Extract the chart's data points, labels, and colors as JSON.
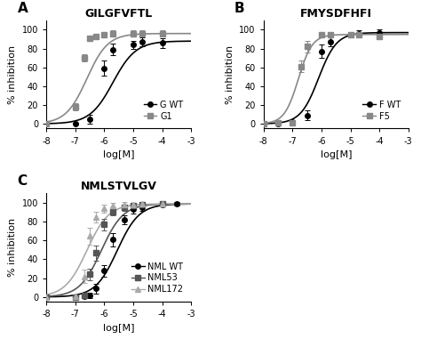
{
  "panel_A": {
    "title": "GILGFVFTL",
    "label": "A",
    "series": [
      {
        "name": "G WT",
        "color": "#000000",
        "marker": "o",
        "markersize": 4,
        "linewidth": 1.2,
        "x": [
          -8,
          -7,
          -6.5,
          -6,
          -5.7,
          -5,
          -4.7,
          -4
        ],
        "y": [
          0,
          0,
          5,
          59,
          79,
          84,
          87,
          86
        ],
        "yerr": [
          1,
          1,
          5,
          8,
          6,
          4,
          5,
          5
        ],
        "ic50": -5.7,
        "top": 88,
        "slope": 1.1
      },
      {
        "name": "G1",
        "color": "#888888",
        "marker": "s",
        "markersize": 4,
        "linewidth": 1.2,
        "x": [
          -8,
          -7,
          -6.7,
          -6.5,
          -6.3,
          -6,
          -5.7,
          -5,
          -4.7,
          -4
        ],
        "y": [
          0,
          18,
          70,
          91,
          93,
          95,
          96,
          96,
          96,
          96
        ],
        "yerr": [
          1,
          4,
          4,
          3,
          3,
          3,
          3,
          3,
          3,
          3
        ],
        "ic50": -6.6,
        "top": 96,
        "slope": 1.2
      }
    ],
    "xlim": [
      -8,
      -3
    ],
    "ylim": [
      -5,
      110
    ],
    "xticks": [
      -8,
      -7,
      -6,
      -5,
      -4,
      -3
    ],
    "yticks": [
      0,
      20,
      40,
      60,
      80,
      100
    ]
  },
  "panel_B": {
    "title": "FMYSDFHFI",
    "label": "B",
    "series": [
      {
        "name": "F WT",
        "color": "#000000",
        "marker": "o",
        "markersize": 4,
        "linewidth": 1.2,
        "x": [
          -8,
          -7.5,
          -7,
          -6.5,
          -6,
          -5.7,
          -5,
          -4.7,
          -4
        ],
        "y": [
          0,
          0,
          2,
          9,
          77,
          87,
          95,
          96,
          97
        ],
        "yerr": [
          1,
          1,
          2,
          5,
          7,
          5,
          3,
          3,
          3
        ],
        "ic50": -6.1,
        "top": 97,
        "slope": 1.4
      },
      {
        "name": "F5",
        "color": "#888888",
        "marker": "s",
        "markersize": 4,
        "linewidth": 1.2,
        "x": [
          -8,
          -7.5,
          -7,
          -6.7,
          -6.5,
          -6,
          -5.7,
          -5,
          -4.7,
          -4
        ],
        "y": [
          0,
          1,
          1,
          61,
          82,
          95,
          95,
          95,
          95,
          93
        ],
        "yerr": [
          1,
          1,
          2,
          6,
          6,
          3,
          3,
          3,
          3,
          3
        ],
        "ic50": -6.8,
        "top": 95,
        "slope": 1.8
      }
    ],
    "xlim": [
      -8,
      -3
    ],
    "ylim": [
      -5,
      110
    ],
    "xticks": [
      -8,
      -7,
      -6,
      -5,
      -4,
      -3
    ],
    "yticks": [
      0,
      20,
      40,
      60,
      80,
      100
    ]
  },
  "panel_C": {
    "title": "NMLSTVLGV",
    "label": "C",
    "series": [
      {
        "name": "NML WT",
        "color": "#000000",
        "marker": "o",
        "markersize": 4,
        "linewidth": 1.2,
        "x": [
          -8,
          -7,
          -6.7,
          -6.5,
          -6.3,
          -6,
          -5.7,
          -5.3,
          -5,
          -4.7,
          -4,
          -3.5
        ],
        "y": [
          0,
          0,
          1,
          2,
          9,
          28,
          61,
          82,
          93,
          95,
          98,
          99
        ],
        "yerr": [
          1,
          1,
          2,
          3,
          5,
          6,
          7,
          5,
          4,
          3,
          2,
          2
        ],
        "ic50": -5.55,
        "top": 99,
        "slope": 1.15
      },
      {
        "name": "NML53",
        "color": "#555555",
        "marker": "s",
        "markersize": 4,
        "linewidth": 1.2,
        "x": [
          -8,
          -7,
          -6.7,
          -6.5,
          -6.3,
          -6,
          -5.7,
          -5.3,
          -5,
          -4.7,
          -4
        ],
        "y": [
          0,
          0,
          2,
          24,
          47,
          77,
          91,
          95,
          97,
          98,
          99
        ],
        "yerr": [
          1,
          1,
          3,
          6,
          8,
          6,
          4,
          3,
          3,
          2,
          2
        ],
        "ic50": -6.1,
        "top": 99,
        "slope": 1.15
      },
      {
        "name": "NML172",
        "color": "#aaaaaa",
        "marker": "^",
        "markersize": 4,
        "linewidth": 1.2,
        "x": [
          -8,
          -7,
          -6.7,
          -6.5,
          -6.3,
          -6,
          -5.7,
          -5.3,
          -5,
          -4.7,
          -4
        ],
        "y": [
          0,
          1,
          22,
          65,
          85,
          94,
          97,
          98,
          98,
          99,
          99
        ],
        "yerr": [
          1,
          2,
          7,
          9,
          6,
          4,
          3,
          3,
          2,
          2,
          2
        ],
        "ic50": -6.6,
        "top": 99,
        "slope": 1.15
      }
    ],
    "xlim": [
      -8,
      -3
    ],
    "ylim": [
      -5,
      110
    ],
    "xticks": [
      -8,
      -7,
      -6,
      -5,
      -4,
      -3
    ],
    "yticks": [
      0,
      20,
      40,
      60,
      80,
      100
    ]
  },
  "xlabel": "log[M]",
  "ylabel": "% inhibition",
  "background_color": "#ffffff",
  "tick_fontsize": 7,
  "label_fontsize": 8,
  "title_fontsize": 9,
  "legend_fontsize": 7
}
